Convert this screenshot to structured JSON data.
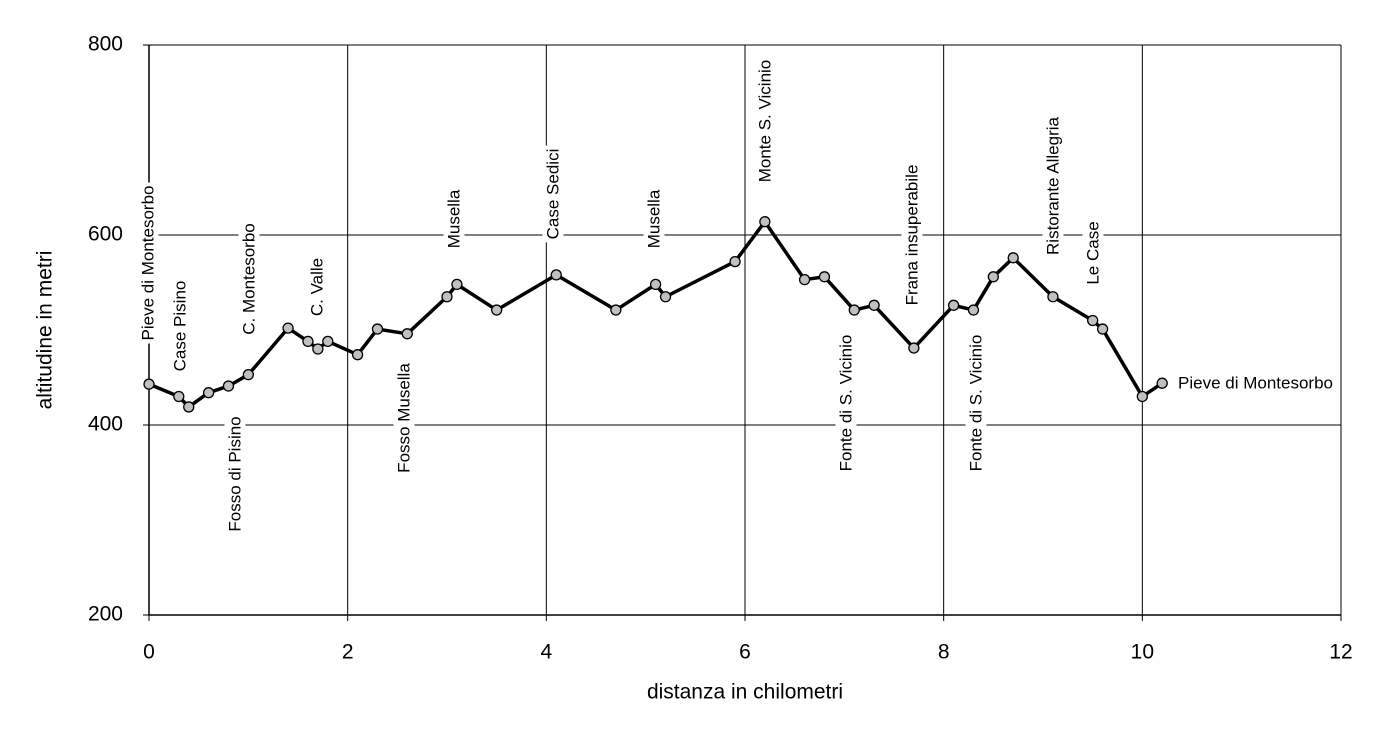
{
  "chart_data": {
    "type": "line",
    "x_label": "distanza in chilometri",
    "y_label": "altitudine  in metri",
    "x": [
      0,
      0.3,
      0.4,
      0.6,
      0.8,
      1.0,
      1.4,
      1.6,
      1.7,
      1.8,
      2.1,
      2.3,
      2.6,
      3.0,
      3.1,
      3.5,
      4.1,
      4.7,
      5.1,
      5.2,
      5.9,
      6.2,
      6.6,
      6.8,
      7.1,
      7.3,
      7.7,
      8.1,
      8.3,
      8.5,
      8.7,
      9.1,
      9.5,
      9.6,
      10.0,
      10.2
    ],
    "values": [
      443,
      430,
      419,
      434,
      441,
      453,
      502,
      488,
      480,
      488,
      474,
      501,
      496,
      535,
      548,
      521,
      558,
      521,
      548,
      535,
      572,
      614,
      553,
      556,
      521,
      526,
      481,
      526,
      521,
      556,
      576,
      535,
      510,
      501,
      430,
      444
    ],
    "color": "#000000",
    "marker_color": "#c0c0c0",
    "xlim": [
      0,
      12
    ],
    "xticks": [
      0,
      2,
      4,
      6,
      8,
      10,
      12
    ],
    "ylim": [
      200,
      800
    ],
    "yticks": [
      200,
      400,
      600,
      800
    ],
    "grid": true,
    "annotations": [
      "Pieve di Montesorbo",
      "Case Pisino",
      "Fosso di Pisino",
      "C. Montesorbo",
      "C. Valle",
      "Fosso Musella",
      "Musella",
      "Case Sedici",
      "Musella",
      "Monte S. Vicinio",
      "Fonte di S. Vicinio",
      "Frana insuperabile",
      "Fonte di S. Vicinio",
      "Ristorante Allegria",
      "Le Case",
      "Pieve di Montesorbo"
    ]
  }
}
